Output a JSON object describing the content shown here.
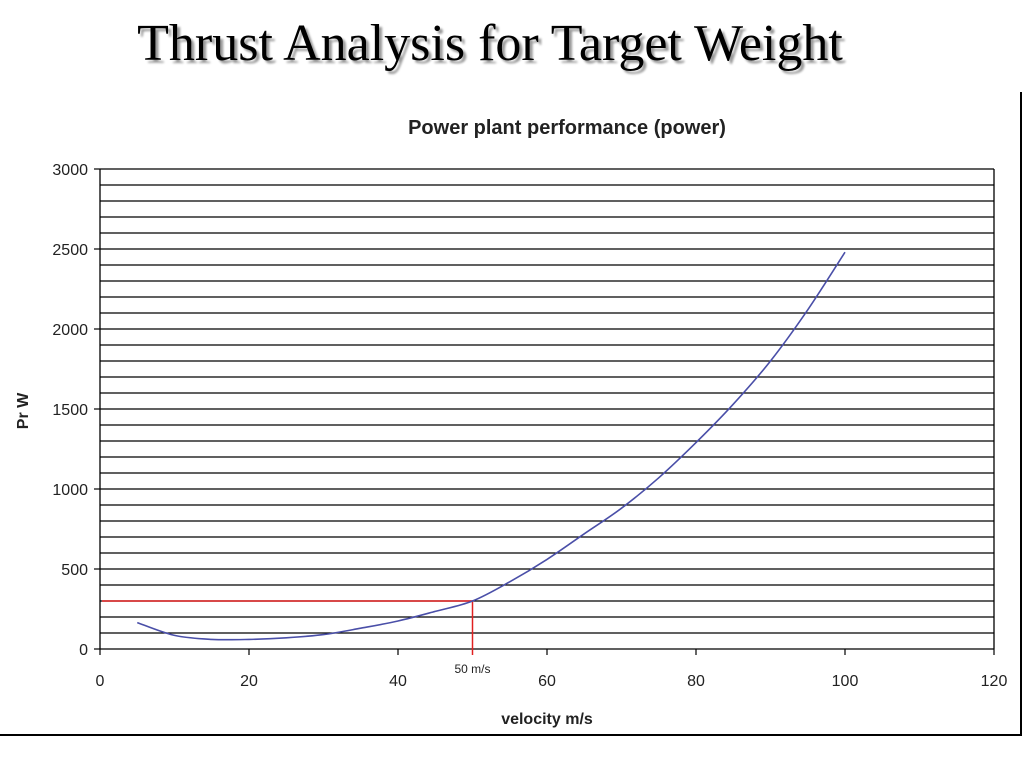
{
  "slide": {
    "title": "Thrust Analysis for Target Weight"
  },
  "colors": {
    "curve": "#4a4fa8",
    "marker": "#e02020",
    "grid": "#000000"
  },
  "chart_data": {
    "type": "line",
    "title": "Power plant performance (power)",
    "xlabel": "velocity m/s",
    "ylabel": "Pr W",
    "xlim": [
      0,
      120
    ],
    "ylim": [
      0,
      3000
    ],
    "x_ticks": [
      0,
      20,
      40,
      60,
      80,
      100,
      120
    ],
    "y_ticks": [
      0,
      500,
      1000,
      1500,
      2000,
      2500,
      3000
    ],
    "y_grid_step": 100,
    "grid": true,
    "legend": "none",
    "series": [
      {
        "x": [
          5,
          10,
          15,
          20,
          25,
          30,
          35,
          40,
          45,
          50,
          55,
          60,
          65,
          70,
          75,
          80,
          85,
          90,
          95,
          100
        ],
        "y": [
          165,
          85,
          60,
          60,
          70,
          90,
          130,
          175,
          235,
          300,
          420,
          560,
          720,
          880,
          1070,
          1290,
          1530,
          1800,
          2120,
          2480
        ]
      }
    ],
    "annotations": [
      {
        "text": "50 m/s",
        "x": 50,
        "y": 300
      }
    ]
  }
}
